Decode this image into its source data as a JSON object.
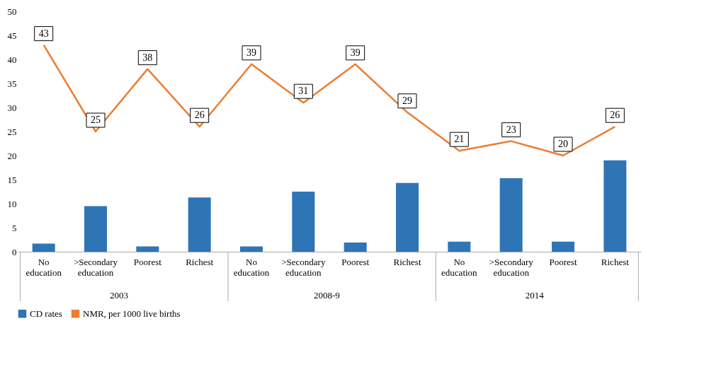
{
  "chart_data": {
    "type": "bar",
    "categories": [
      "No education",
      ">Secondary education",
      "Poorest",
      "Richest",
      "No education",
      ">Secondary education",
      "Poorest",
      "Richest",
      "No education",
      ">Secondary education",
      "Poorest",
      "Richest"
    ],
    "series": [
      {
        "name": "CD rates",
        "color": "#2e75b6",
        "values": [
          1.7,
          9.5,
          1.1,
          11.3,
          1.1,
          12.5,
          1.9,
          14.3,
          2.1,
          15.3,
          2.1,
          19.0
        ]
      },
      {
        "name": "NMR, per 1000 live births",
        "type": "line",
        "color": "#ed7d31",
        "values": [
          43,
          25,
          38,
          26,
          39,
          31,
          39,
          29,
          21,
          23,
          20,
          26
        ],
        "value_labels": [
          "43",
          "25",
          "38",
          "26",
          "39",
          "31",
          "39",
          "29",
          "21",
          "23",
          "20",
          "26"
        ]
      }
    ],
    "annotations": [
      "2003",
      "2008-9",
      "2014"
    ],
    "ylim": [
      0,
      50
    ],
    "yticks": [
      0,
      5,
      10,
      15,
      20,
      25,
      30,
      35,
      40,
      45,
      50
    ],
    "grid": false,
    "legend": "bottom",
    "marker": "none"
  }
}
